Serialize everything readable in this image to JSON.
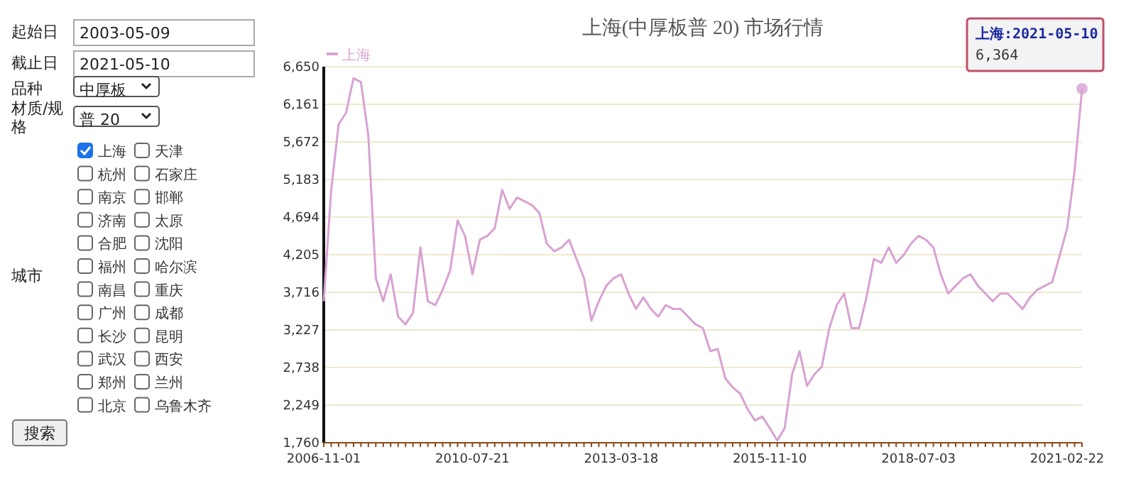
{
  "chart_data": [
    {
      "type": "other",
      "annotations": [
        "起始日",
        "2003-05-09",
        "截止日",
        "2021-05-10",
        "品种",
        "中厚板",
        "材质/规格",
        "普 20",
        "城市",
        "搜索"
      ],
      "categories": [
        "上海",
        "天津",
        "杭州",
        "石家庄",
        "南京",
        "邯郸",
        "济南",
        "太原",
        "合肥",
        "沈阳",
        "福州",
        "哈尔滨",
        "南昌",
        "重庆",
        "广州",
        "成都",
        "长沙",
        "昆明",
        "武汉",
        "西安",
        "郑州",
        "兰州",
        "北京",
        "乌鲁木齐"
      ]
    },
    {
      "type": "line",
      "title": "上海(中厚板普 20) 市场行情",
      "categories": [
        "2006-11-01",
        null,
        null,
        null,
        null,
        null,
        null,
        null,
        null,
        null,
        null,
        null,
        null,
        null,
        null,
        null,
        null,
        null,
        null,
        null,
        "2010-07-21",
        null,
        null,
        null,
        null,
        null,
        null,
        null,
        null,
        null,
        null,
        null,
        null,
        null,
        null,
        null,
        null,
        null,
        null,
        null,
        "2013-03-18",
        null,
        null,
        null,
        null,
        null,
        null,
        null,
        null,
        null,
        null,
        null,
        null,
        null,
        null,
        null,
        null,
        null,
        null,
        null,
        "2015-11-10",
        null,
        null,
        null,
        null,
        null,
        null,
        null,
        null,
        null,
        null,
        null,
        null,
        null,
        null,
        null,
        null,
        null,
        null,
        null,
        "2018-07-03",
        null,
        null,
        null,
        null,
        null,
        null,
        null,
        null,
        null,
        null,
        null,
        null,
        null,
        null,
        null,
        null,
        null,
        null,
        null,
        "2021-02-22",
        null,
        null
      ],
      "series": [
        {
          "name": "上海",
          "color": "#d8a2d2",
          "values": [
            3600,
            5050,
            5900,
            6050,
            6500,
            6450,
            5750,
            3900,
            3600,
            3950,
            3400,
            3300,
            3450,
            4300,
            3600,
            3550,
            3750,
            4000,
            4650,
            4450,
            3950,
            4400,
            4450,
            4550,
            5050,
            4800,
            4950,
            4900,
            4850,
            4750,
            4350,
            4250,
            4300,
            4400,
            4150,
            3900,
            3350,
            3600,
            3800,
            3900,
            3950,
            3700,
            3500,
            3650,
            3500,
            3400,
            3550,
            3500,
            3500,
            3400,
            3300,
            3250,
            2950,
            2980,
            2600,
            2480,
            2400,
            2200,
            2050,
            2100,
            1950,
            1790,
            1950,
            2650,
            2950,
            2500,
            2650,
            2750,
            3250,
            3550,
            3700,
            3250,
            3250,
            3650,
            4150,
            4100,
            4300,
            4100,
            4200,
            4350,
            4450,
            4400,
            4300,
            3950,
            3700,
            3800,
            3900,
            3950,
            3800,
            3700,
            3600,
            3700,
            3700,
            3600,
            3500,
            3650,
            3750,
            3800,
            3850,
            4200,
            4550,
            5300,
            6364
          ]
        }
      ],
      "ylim": [
        1760,
        6650
      ],
      "yticks": [
        {
          "value": 1760,
          "label": "1,760"
        },
        {
          "value": 2249,
          "label": "2,249"
        },
        {
          "value": 2738,
          "label": "2,738"
        },
        {
          "value": 3227,
          "label": "3,227"
        },
        {
          "value": 3716,
          "label": "3,716"
        },
        {
          "value": 4205,
          "label": "4,205"
        },
        {
          "value": 4694,
          "label": "4,694"
        },
        {
          "value": 5183,
          "label": "5,183"
        },
        {
          "value": 5672,
          "label": "5,672"
        },
        {
          "value": 6161,
          "label": "6,161"
        },
        {
          "value": 6650,
          "label": "6,650"
        }
      ],
      "grid": "y",
      "legend": "top left",
      "marker": "none",
      "annotations": [
        "上海:2021-05-10",
        "6,364"
      ]
    }
  ]
}
